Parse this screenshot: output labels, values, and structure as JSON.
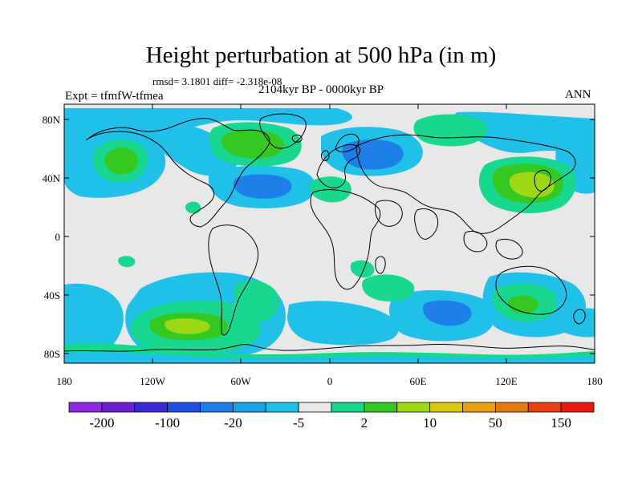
{
  "title": "Height perturbation at 500 hPa (in m)",
  "stats_text": "rmsd= 3.1801  diff= -2.318e-08",
  "period": "2104kyr BP - 0000kyr BP",
  "experiment": "Expt = tfmfW-tfmea",
  "season": "ANN",
  "lat_ticks": [
    "80N",
    "40N",
    "0",
    "40S",
    "80S"
  ],
  "lon_ticks": [
    "180",
    "120W",
    "60W",
    "0",
    "60E",
    "120E",
    "180"
  ],
  "colorbar": {
    "colors": [
      "#8a2be2",
      "#6a1fd0",
      "#3a2ad6",
      "#1f4fe0",
      "#1e7fe8",
      "#1aa3e8",
      "#20c0e8",
      "#e8e8e8",
      "#18d890",
      "#34c820",
      "#9cd814",
      "#d8c810",
      "#e8a010",
      "#e87810",
      "#e84010",
      "#e81a10"
    ],
    "labels": [
      "-200",
      "-100",
      "-20",
      "-5",
      "2",
      "10",
      "50",
      "150"
    ]
  },
  "colors": {
    "background": "#e8e8e8",
    "blue_light": "#20c0e8",
    "blue_mid": "#1e7fe8",
    "green_light": "#18d890",
    "green": "#34c820",
    "yellow_green": "#9cd814",
    "coast": "#000000"
  }
}
